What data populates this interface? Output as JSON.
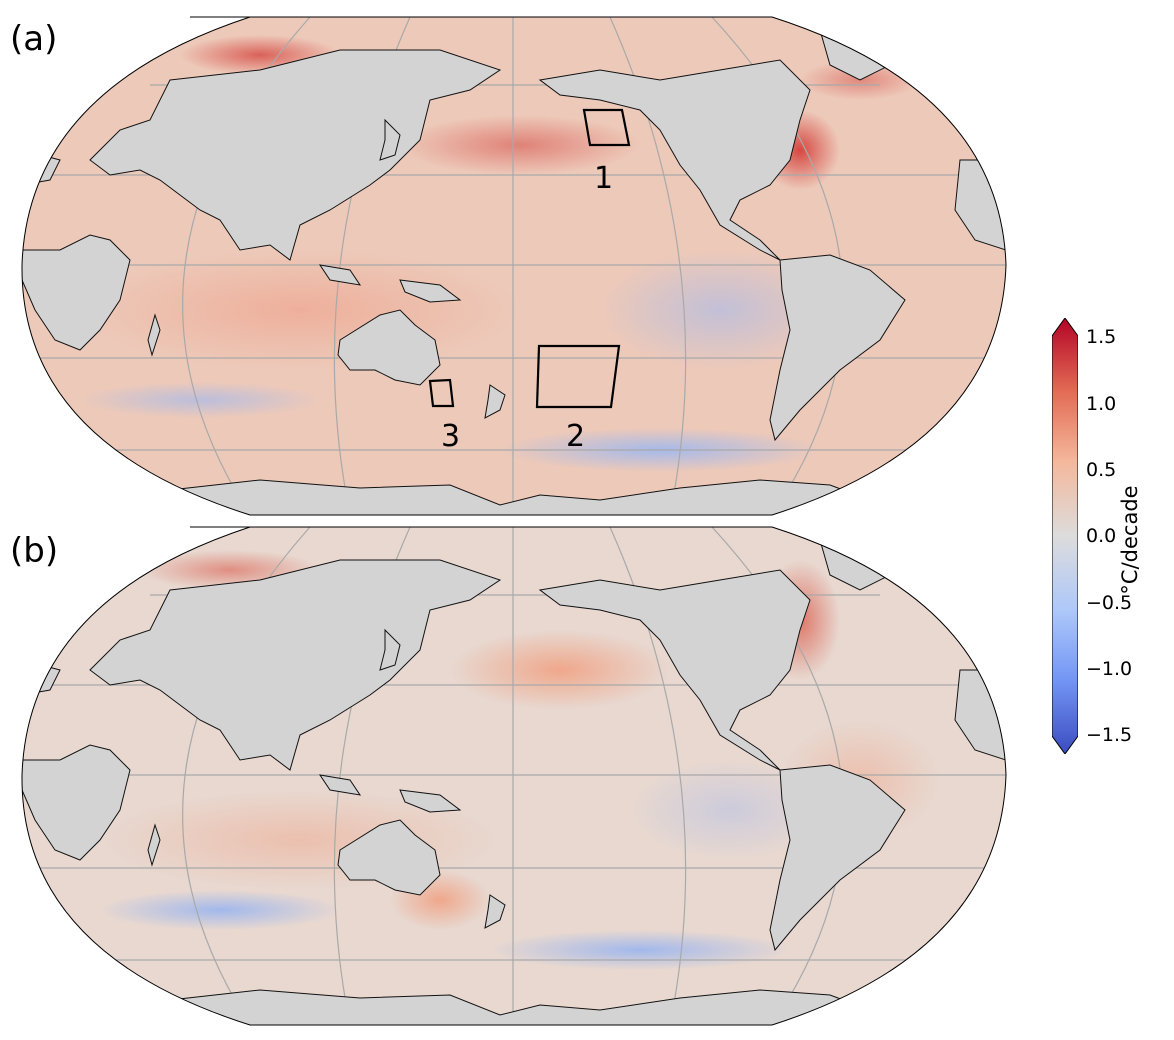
{
  "panels": [
    {
      "label": "(a)",
      "regions": [
        "1",
        "2",
        "3"
      ]
    },
    {
      "label": "(b)"
    }
  ],
  "colorbar": {
    "title": "°C/decade",
    "ticks": [
      "1.5",
      "1.0",
      "0.5",
      "0.0",
      "−0.5",
      "−1.0",
      "−1.5"
    ],
    "range": [
      -1.5,
      1.5
    ],
    "extend": "both",
    "colormap": "coolwarm",
    "colors": {
      "max": "#b40426",
      "high": "#ef8a62",
      "mid": "#dddddd",
      "low": "#8db0fe",
      "min": "#3b4cc0"
    }
  },
  "style": {
    "land_color": "#d3d3d3",
    "ocean_base": "#e5dbd6",
    "grid_color": "#aaaaaa"
  }
}
